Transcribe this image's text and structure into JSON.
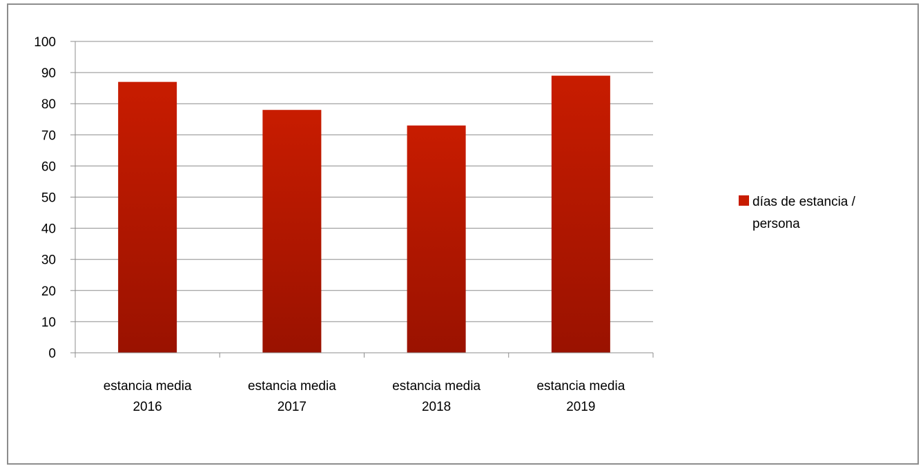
{
  "chart_data": {
    "type": "bar",
    "categories": [
      "estancia media 2016",
      "estancia media 2017",
      "estancia media 2018",
      "estancia media 2019"
    ],
    "category_lines": [
      [
        "estancia media",
        "2016"
      ],
      [
        "estancia media",
        "2017"
      ],
      [
        "estancia media",
        "2018"
      ],
      [
        "estancia media",
        "2019"
      ]
    ],
    "series": [
      {
        "name": "días de estancia / persona",
        "values": [
          87,
          78,
          73,
          89
        ]
      }
    ],
    "ylim": [
      0,
      100
    ],
    "yticks": [
      0,
      10,
      20,
      30,
      40,
      50,
      60,
      70,
      80,
      90,
      100
    ],
    "grid": true,
    "legend_position": "right",
    "colors": {
      "bar_top": "#c81c00",
      "bar_bottom": "#9a1200",
      "grid": "#8c8c8c",
      "axis": "#8c8c8c"
    }
  }
}
